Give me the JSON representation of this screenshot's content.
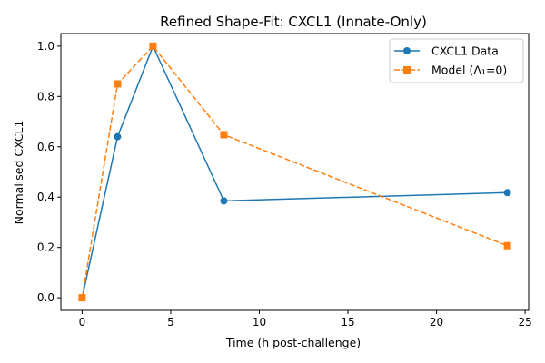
{
  "chart_data": {
    "type": "line",
    "title": "Refined Shape-Fit: CXCL1 (Innate-Only)",
    "xlabel": "Time (h post-challenge)",
    "ylabel": "Normalised CXCL1",
    "xlim": [
      -1.2,
      25.2
    ],
    "ylim": [
      -0.05,
      1.05
    ],
    "xticks": [
      0,
      5,
      10,
      15,
      20,
      25
    ],
    "yticks": [
      0.0,
      0.2,
      0.4,
      0.6,
      0.8,
      1.0
    ],
    "xtick_labels": [
      "0",
      "5",
      "10",
      "15",
      "20",
      "25"
    ],
    "ytick_labels": [
      "0.0",
      "0.2",
      "0.4",
      "0.6",
      "0.8",
      "1.0"
    ],
    "grid": false,
    "legend_position": "top-right",
    "series": [
      {
        "name": "CXCL1 Data",
        "x": [
          0,
          2,
          4,
          8,
          24
        ],
        "y": [
          0.0,
          0.64,
          1.0,
          0.385,
          0.418
        ],
        "color": "#1f77b4",
        "line_style": "solid",
        "marker": "circle"
      },
      {
        "name": "Model (Λ₁=0)",
        "x": [
          0,
          2,
          4,
          8,
          24
        ],
        "y": [
          0.0,
          0.85,
          1.0,
          0.648,
          0.207
        ],
        "color": "#ff7f0e",
        "line_style": "dashed",
        "marker": "square"
      }
    ]
  }
}
